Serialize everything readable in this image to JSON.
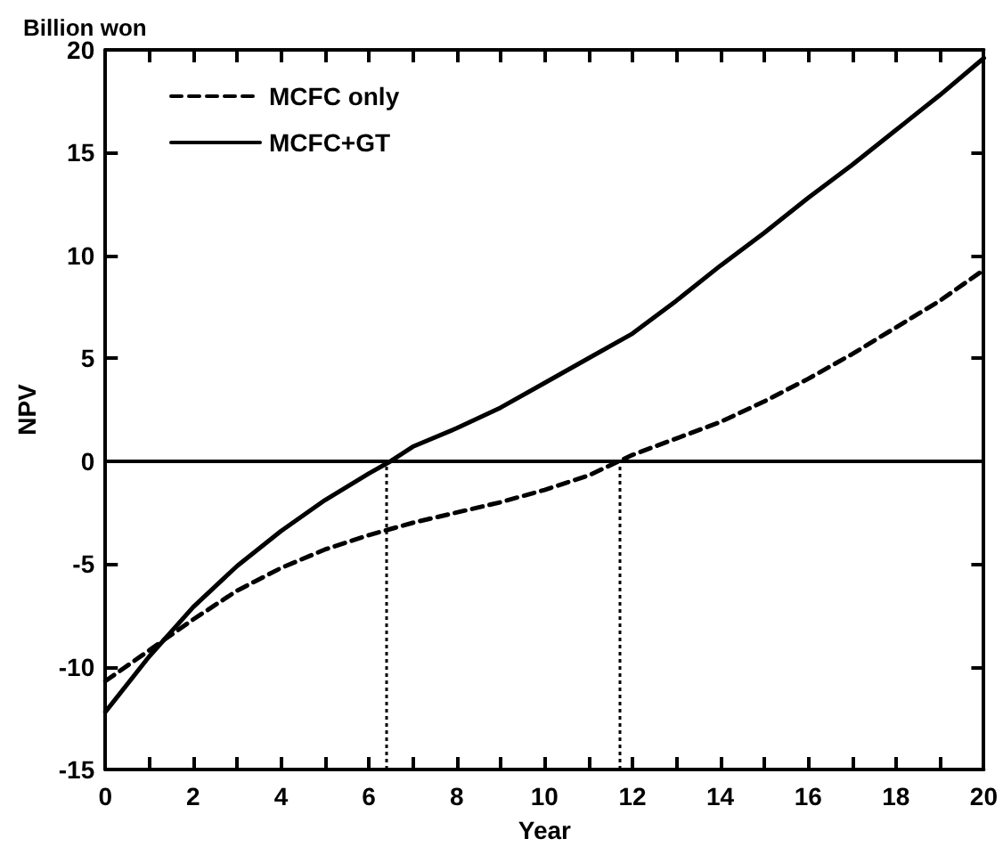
{
  "chart_data": {
    "type": "line",
    "xlabel": "Year",
    "ylabel": "NPV",
    "annotations": [
      "Billion won"
    ],
    "xlim": [
      0,
      20
    ],
    "ylim": [
      -15,
      20
    ],
    "xticks": [
      0,
      {
        "value": 1,
        "label": null
      },
      2,
      {
        "value": 3,
        "label": null
      },
      4,
      {
        "value": 5,
        "label": null
      },
      6,
      {
        "value": 7,
        "label": null
      },
      8,
      {
        "value": 9,
        "label": null
      },
      10,
      {
        "value": 11,
        "label": null
      },
      12,
      {
        "value": 13,
        "label": null
      },
      14,
      {
        "value": 15,
        "label": null
      },
      16,
      {
        "value": 17,
        "label": null
      },
      18,
      {
        "value": 19,
        "label": null
      },
      20
    ],
    "yticks": [
      -15,
      -10,
      -5,
      0,
      5,
      10,
      15,
      20
    ],
    "grid": false,
    "legend": "top left",
    "marker": "none",
    "series": [
      {
        "name": "MCFC only",
        "color": "#000000",
        "line_style": "dashed",
        "x": [
          0,
          1,
          2,
          3,
          4,
          5,
          6,
          7,
          8,
          9,
          10,
          11,
          11.7,
          12,
          13,
          14,
          15,
          16,
          17,
          18,
          19,
          20
        ],
        "values": [
          -10.7,
          -9.2,
          -7.7,
          -6.3,
          -5.2,
          -4.3,
          -3.6,
          -3.0,
          -2.5,
          -2.0,
          -1.4,
          -0.7,
          0,
          0.3,
          1.1,
          1.9,
          2.9,
          4.0,
          5.2,
          6.5,
          7.8,
          9.3
        ]
      },
      {
        "name": "MCFC+GT",
        "color": "#000000",
        "line_style": "solid",
        "x": [
          0,
          1,
          2,
          3,
          4,
          5,
          6,
          6.5,
          7,
          8,
          9,
          10,
          11,
          12,
          13,
          14,
          15,
          16,
          17,
          18,
          19,
          20
        ],
        "values": [
          -12.2,
          -9.5,
          -7.1,
          -5.1,
          -3.4,
          -1.9,
          -0.6,
          0,
          0.7,
          1.6,
          2.6,
          3.8,
          5.0,
          6.2,
          7.8,
          9.5,
          11.1,
          12.8,
          14.4,
          16.1,
          17.8,
          19.6
        ]
      }
    ],
    "ref_lines": [
      {
        "axis": "y",
        "value": 0,
        "line_style": "solid"
      },
      {
        "axis": "x",
        "value": 6.4,
        "line_style": "dotted"
      },
      {
        "axis": "x",
        "value": 11.7,
        "line_style": "dotted"
      }
    ]
  }
}
